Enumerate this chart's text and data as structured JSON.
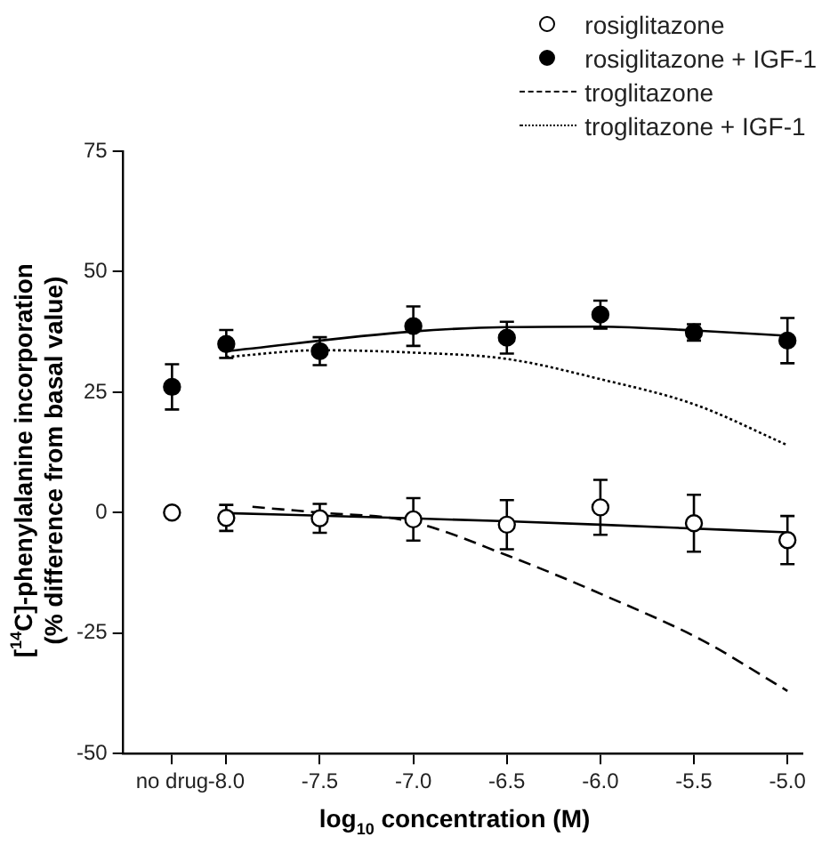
{
  "chart_data": {
    "type": "scatter",
    "xlabel": "log$_{10}$ concentration (M)",
    "ylabel": "[$^{14}$C]-phenylalanine incorporation\n(% difference from basal value)",
    "xlim": [
      -8.55,
      -4.92
    ],
    "ylim": [
      -50,
      75
    ],
    "xticks": [
      {
        "value": -8.29,
        "label": "no drug"
      },
      {
        "value": -8,
        "label": "-8.0"
      },
      {
        "value": -7.5,
        "label": "-7.5"
      },
      {
        "value": -7,
        "label": "-7.0"
      },
      {
        "value": -6.5,
        "label": "-6.5"
      },
      {
        "value": -6,
        "label": "-6.0"
      },
      {
        "value": -5.5,
        "label": "-5.5"
      },
      {
        "value": -5,
        "label": "-5.0"
      }
    ],
    "yticks": [
      -50,
      -25,
      0,
      25,
      50,
      75
    ],
    "grid": false,
    "legend": "top right",
    "series": [
      {
        "name": "rosiglitazone",
        "marker": "circle",
        "color": "#ffffff",
        "x": [
          -8.29,
          -8,
          -7.5,
          -7,
          -6.5,
          -6,
          -5.5,
          -5
        ],
        "values": [
          0,
          -1.1,
          -1.2,
          -1.4,
          -2.5,
          1.1,
          -2.2,
          -5.7
        ],
        "errors": [
          null,
          2.7,
          3.0,
          4.4,
          5.1,
          5.7,
          5.9,
          5.0
        ]
      },
      {
        "name": "rosiglitazone + IGF-1",
        "marker": "circle",
        "color": "#000000",
        "x": [
          -8.29,
          -8,
          -7.5,
          -7,
          -6.5,
          -6,
          -5.5,
          -5
        ],
        "values": [
          26.1,
          35.0,
          33.5,
          38.7,
          36.3,
          41.1,
          37.4,
          35.7
        ],
        "errors": [
          4.7,
          2.9,
          2.9,
          4.1,
          3.3,
          2.9,
          1.7,
          4.7
        ]
      },
      {
        "name": "troglitazone",
        "type": "line",
        "marker": "none",
        "line_style": "dashed",
        "color": "#000000",
        "x": [
          -7.86,
          -7.5,
          -7.02,
          -6.49,
          -5.96,
          -5.46,
          -5
        ],
        "values": [
          1.2,
          0,
          -1.8,
          -9,
          -17.5,
          -26.4,
          -37
        ]
      },
      {
        "name": "troglitazone + IGF-1",
        "type": "line",
        "marker": "none",
        "line_style": "dotted",
        "color": "#000000",
        "x": [
          -8,
          -7.5,
          -7,
          -6.5,
          -6,
          -5.5,
          -5
        ],
        "values": [
          32.3,
          33.7,
          33.2,
          31.9,
          27.7,
          22.5,
          14
        ]
      },
      {
        "type": "line",
        "marker": "none",
        "line_style": "solid",
        "color": "#000000",
        "x": [
          -8,
          -7,
          -6.5,
          -6,
          -5
        ],
        "values": [
          -0.1,
          -1.2,
          -1.8,
          -2.5,
          -4.1
        ]
      },
      {
        "type": "line",
        "marker": "none",
        "line_style": "solid",
        "color": "#000000",
        "x": [
          -8,
          -7,
          -6.5,
          -6,
          -5.5,
          -5
        ],
        "values": [
          33.5,
          37.6,
          38.5,
          38.6,
          37.8,
          36.7
        ]
      }
    ]
  }
}
